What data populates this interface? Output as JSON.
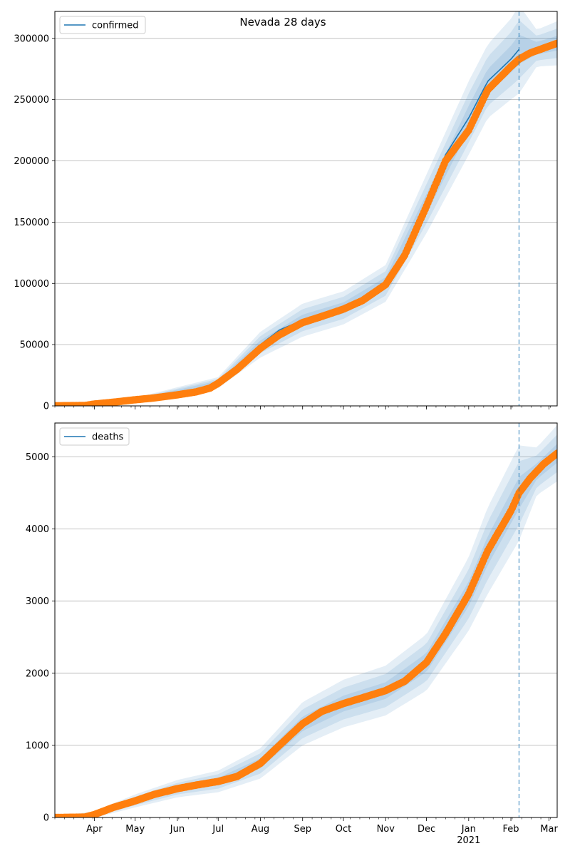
{
  "chart_data": [
    {
      "type": "line",
      "title": "Nevada 28 days",
      "legend": {
        "entries": [
          "confirmed"
        ],
        "placement": "top-left"
      },
      "grid": "y",
      "ylim": [
        0,
        322000
      ],
      "yticks": [
        0,
        50000,
        100000,
        150000,
        200000,
        250000,
        300000
      ],
      "ytick_labels": [
        "0",
        "50000",
        "100000",
        "150000",
        "200000",
        "250000",
        "300000"
      ],
      "x_range": [
        "2020-03-03",
        "2021-03-07"
      ],
      "forecast_start": "2021-02-07",
      "series": [
        {
          "name": "confirmed",
          "kind": "fit",
          "x": [
            "2020-03-03",
            "2020-04-01",
            "2020-05-01",
            "2020-06-01",
            "2020-06-20",
            "2020-07-01",
            "2020-07-15",
            "2020-08-01",
            "2020-08-15",
            "2020-09-01",
            "2020-09-15",
            "2020-10-01",
            "2020-10-15",
            "2020-11-01",
            "2020-11-15",
            "2020-12-01",
            "2020-12-15",
            "2021-01-01",
            "2021-01-15",
            "2021-02-01",
            "2021-02-07"
          ],
          "values": [
            500,
            1500,
            5000,
            9000,
            13000,
            19000,
            30000,
            50000,
            62000,
            70000,
            75000,
            80000,
            88000,
            100000,
            125000,
            165000,
            205000,
            235000,
            265000,
            283000,
            291000
          ]
        },
        {
          "name": "observed",
          "kind": "points",
          "x": [
            "2020-03-03",
            "2020-03-25",
            "2020-04-01",
            "2020-04-15",
            "2020-05-01",
            "2020-05-15",
            "2020-06-01",
            "2020-06-15",
            "2020-06-25",
            "2020-07-01",
            "2020-07-15",
            "2020-08-01",
            "2020-08-15",
            "2020-09-01",
            "2020-09-15",
            "2020-10-01",
            "2020-10-15",
            "2020-11-01",
            "2020-11-15",
            "2020-12-01",
            "2020-12-15",
            "2021-01-01",
            "2021-01-15",
            "2021-02-01",
            "2021-02-07",
            "2021-02-15",
            "2021-03-07"
          ],
          "values": [
            100,
            300,
            1500,
            3000,
            5000,
            6500,
            9000,
            11500,
            14500,
            18500,
            30000,
            47000,
            58000,
            68000,
            73000,
            79000,
            86000,
            99000,
            123000,
            163000,
            200000,
            225000,
            258000,
            277000,
            283000,
            288000,
            296000
          ]
        }
      ],
      "bands": {
        "x": [
          "2020-03-03",
          "2020-05-01",
          "2020-07-01",
          "2020-08-01",
          "2020-09-01",
          "2020-10-01",
          "2020-11-01",
          "2020-12-01",
          "2021-01-01",
          "2021-01-15",
          "2021-02-01",
          "2021-02-07",
          "2021-02-20",
          "2021-03-07"
        ],
        "center": [
          500,
          5000,
          19000,
          50000,
          70000,
          80000,
          100000,
          165000,
          235000,
          265000,
          283000,
          291000,
          292000,
          296000
        ],
        "half_widths": [
          [
            150,
            500,
            1500,
            3500,
            4500,
            4500,
            5000,
            8000,
            10000,
            10000,
            11000,
            12000,
            5000,
            6000
          ],
          [
            300,
            1000,
            3000,
            7000,
            9000,
            9000,
            10000,
            16000,
            20000,
            20000,
            22000,
            24000,
            10000,
            12000
          ],
          [
            500,
            1600,
            4500,
            10500,
            13500,
            13500,
            15000,
            24000,
            30000,
            30000,
            33000,
            36000,
            15000,
            18000
          ]
        ]
      }
    },
    {
      "type": "line",
      "legend": {
        "entries": [
          "deaths"
        ],
        "placement": "top-left"
      },
      "grid": "y",
      "ylim": [
        0,
        5470
      ],
      "yticks": [
        0,
        1000,
        2000,
        3000,
        4000,
        5000
      ],
      "ytick_labels": [
        "0",
        "1000",
        "2000",
        "3000",
        "4000",
        "5000"
      ],
      "x_range": [
        "2020-03-03",
        "2021-03-07"
      ],
      "forecast_start": "2021-02-07",
      "xtick_labels": [
        "Apr",
        "May",
        "Jun",
        "Jul",
        "Aug",
        "Sep",
        "Oct",
        "Nov",
        "Dec",
        "Jan",
        "Feb",
        "Mar"
      ],
      "xtick_dates": [
        "2020-04-01",
        "2020-05-01",
        "2020-06-01",
        "2020-07-01",
        "2020-08-01",
        "2020-09-01",
        "2020-10-01",
        "2020-11-01",
        "2020-12-01",
        "2021-01-01",
        "2021-02-01",
        "2021-03-01"
      ],
      "year_label": "2021",
      "series": [
        {
          "name": "deaths",
          "kind": "fit",
          "x": [
            "2020-03-03",
            "2020-03-25",
            "2020-04-01",
            "2020-04-15",
            "2020-05-01",
            "2020-05-15",
            "2020-06-01",
            "2020-06-15",
            "2020-07-01",
            "2020-07-15",
            "2020-08-01",
            "2020-08-15",
            "2020-09-01",
            "2020-09-15",
            "2020-10-01",
            "2020-10-15",
            "2020-11-01",
            "2020-11-15",
            "2020-12-01",
            "2020-12-15",
            "2021-01-01",
            "2021-01-15",
            "2021-02-01",
            "2021-02-07"
          ],
          "values": [
            0,
            5,
            40,
            140,
            230,
            320,
            400,
            450,
            500,
            570,
            750,
            1000,
            1300,
            1470,
            1580,
            1660,
            1760,
            1890,
            2150,
            2550,
            3100,
            3700,
            4250,
            4500
          ]
        },
        {
          "name": "observed",
          "kind": "points",
          "x": [
            "2020-03-03",
            "2020-03-25",
            "2020-04-01",
            "2020-04-15",
            "2020-05-01",
            "2020-05-15",
            "2020-06-01",
            "2020-06-15",
            "2020-07-01",
            "2020-07-15",
            "2020-08-01",
            "2020-08-15",
            "2020-09-01",
            "2020-09-15",
            "2020-10-01",
            "2020-10-15",
            "2020-11-01",
            "2020-11-15",
            "2020-12-01",
            "2020-12-15",
            "2021-01-01",
            "2021-01-15",
            "2021-02-01",
            "2021-02-07",
            "2021-02-15",
            "2021-02-25",
            "2021-03-07"
          ],
          "values": [
            0,
            5,
            40,
            140,
            230,
            320,
            400,
            450,
            500,
            570,
            750,
            1000,
            1300,
            1470,
            1580,
            1660,
            1760,
            1890,
            2150,
            2550,
            3100,
            3700,
            4250,
            4500,
            4700,
            4900,
            5050
          ]
        }
      ],
      "bands": {
        "x": [
          "2020-03-03",
          "2020-04-01",
          "2020-05-01",
          "2020-06-01",
          "2020-07-01",
          "2020-08-01",
          "2020-09-01",
          "2020-10-01",
          "2020-11-01",
          "2020-12-01",
          "2021-01-01",
          "2021-01-15",
          "2021-02-07",
          "2021-02-20",
          "2021-03-07"
        ],
        "center": [
          0,
          40,
          230,
          400,
          500,
          750,
          1300,
          1580,
          1760,
          2150,
          3100,
          3700,
          4500,
          4800,
          5050
        ],
        "half_widths": [
          [
            5,
            15,
            30,
            40,
            50,
            70,
            100,
            110,
            115,
            130,
            170,
            200,
            220,
            110,
            130
          ],
          [
            10,
            30,
            60,
            80,
            100,
            140,
            200,
            220,
            230,
            260,
            340,
            400,
            440,
            220,
            260
          ],
          [
            15,
            45,
            90,
            120,
            150,
            210,
            300,
            330,
            345,
            390,
            510,
            600,
            660,
            330,
            390
          ]
        ]
      }
    }
  ]
}
